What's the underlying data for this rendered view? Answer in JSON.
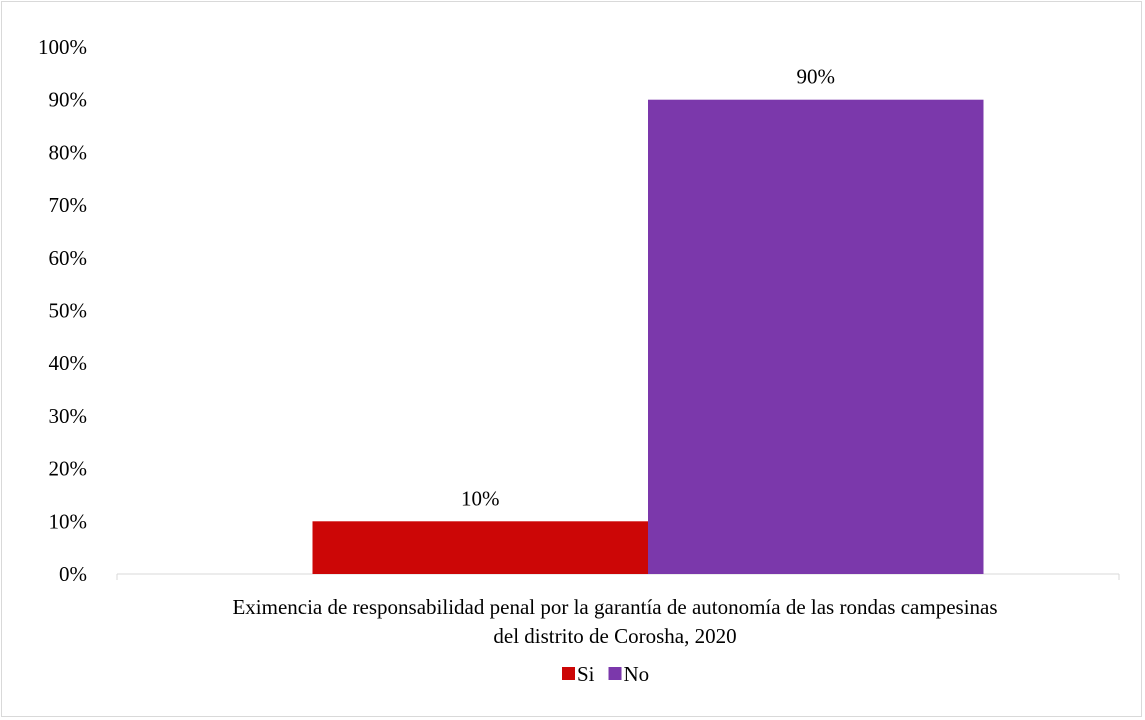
{
  "chart_data": {
    "type": "bar",
    "categories": [
      "Eximencia de responsabilidad penal por la garantía de autonomía de las rondas campesinas del distrito de Corosha, 2020"
    ],
    "category_lines": [
      "Eximencia de responsabilidad penal por la garantía de autonomía de las rondas campesinas",
      "del distrito de Corosha, 2020"
    ],
    "series": [
      {
        "name": "Si",
        "values": [
          10
        ],
        "label": "10%",
        "color": "#cc0606"
      },
      {
        "name": "No",
        "values": [
          90
        ],
        "label": "90%",
        "color": "#7b38ab"
      }
    ],
    "yticks": [
      "0%",
      "10%",
      "20%",
      "30%",
      "40%",
      "50%",
      "60%",
      "70%",
      "80%",
      "90%",
      "100%"
    ],
    "ylim": [
      0,
      100
    ],
    "grid": false,
    "legend": "bottom"
  }
}
